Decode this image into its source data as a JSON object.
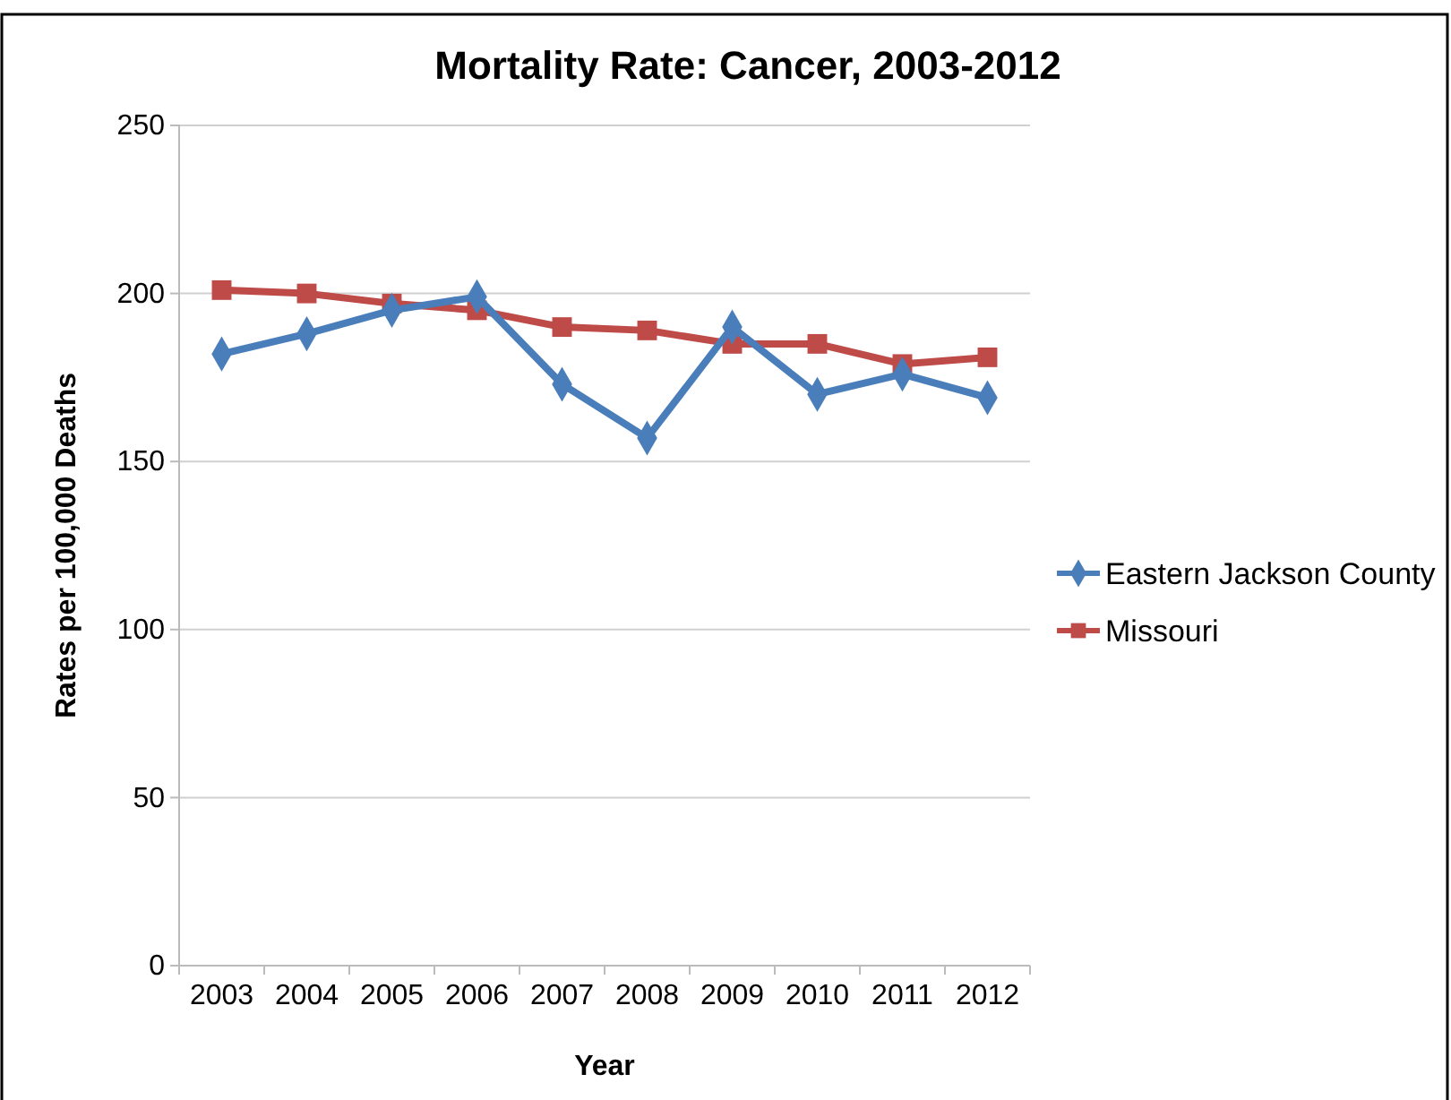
{
  "chart_data": {
    "type": "line",
    "title": "Mortality Rate: Cancer, 2003-2012",
    "xlabel": "Year",
    "ylabel": "Rates per 100,000 Deaths",
    "categories": [
      "2003",
      "2004",
      "2005",
      "2006",
      "2007",
      "2008",
      "2009",
      "2010",
      "2011",
      "2012"
    ],
    "series": [
      {
        "name": "Eastern Jackson County",
        "color": "#4a7ebb",
        "marker": "diamond",
        "values": [
          182,
          188,
          195,
          199,
          173,
          157,
          190,
          170,
          176,
          169
        ]
      },
      {
        "name": "Missouri",
        "color": "#be4b48",
        "marker": "square",
        "values": [
          201,
          200,
          197,
          195,
          190,
          189,
          185,
          185,
          179,
          181
        ]
      }
    ],
    "ylim": [
      0,
      250
    ],
    "yticks": [
      0,
      50,
      100,
      150,
      200,
      250
    ],
    "grid": "y",
    "legend": "right",
    "line_style": "solid"
  }
}
